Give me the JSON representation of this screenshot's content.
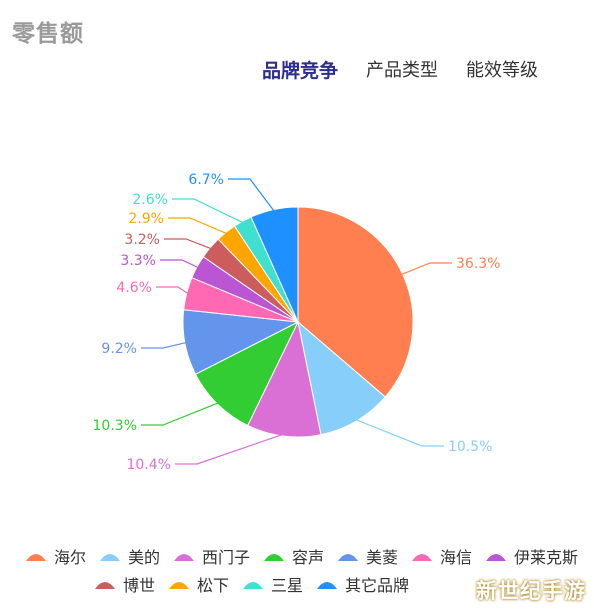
{
  "header": {
    "title": "零售额",
    "tabs": [
      {
        "label": "品牌竞争",
        "active": true
      },
      {
        "label": "产品类型",
        "active": false
      },
      {
        "label": "能效等级",
        "active": false
      }
    ]
  },
  "chart_data": {
    "type": "pie",
    "title": "",
    "labels": [
      "海尔",
      "美的",
      "西门子",
      "容声",
      "美菱",
      "海信",
      "伊莱克斯",
      "博世",
      "松下",
      "三星",
      "其它品牌"
    ],
    "values": [
      36.3,
      10.5,
      10.4,
      10.3,
      9.2,
      4.6,
      3.3,
      3.2,
      2.9,
      2.6,
      6.7
    ],
    "value_labels": [
      "36.3%",
      "10.5%",
      "10.4%",
      "10.3%",
      "9.2%",
      "4.6%",
      "3.3%",
      "3.2%",
      "2.9%",
      "2.6%",
      "6.7%"
    ],
    "colors": [
      "#ff7f50",
      "#87cefa",
      "#da70d6",
      "#32cd32",
      "#6495ed",
      "#ff69b4",
      "#ba55d3",
      "#cd5c5c",
      "#ffa500",
      "#40e0d0",
      "#1e90ff"
    ],
    "start": "12 o'clock, clockwise",
    "legend_placement": "bottom"
  },
  "watermark": "新世纪手游"
}
